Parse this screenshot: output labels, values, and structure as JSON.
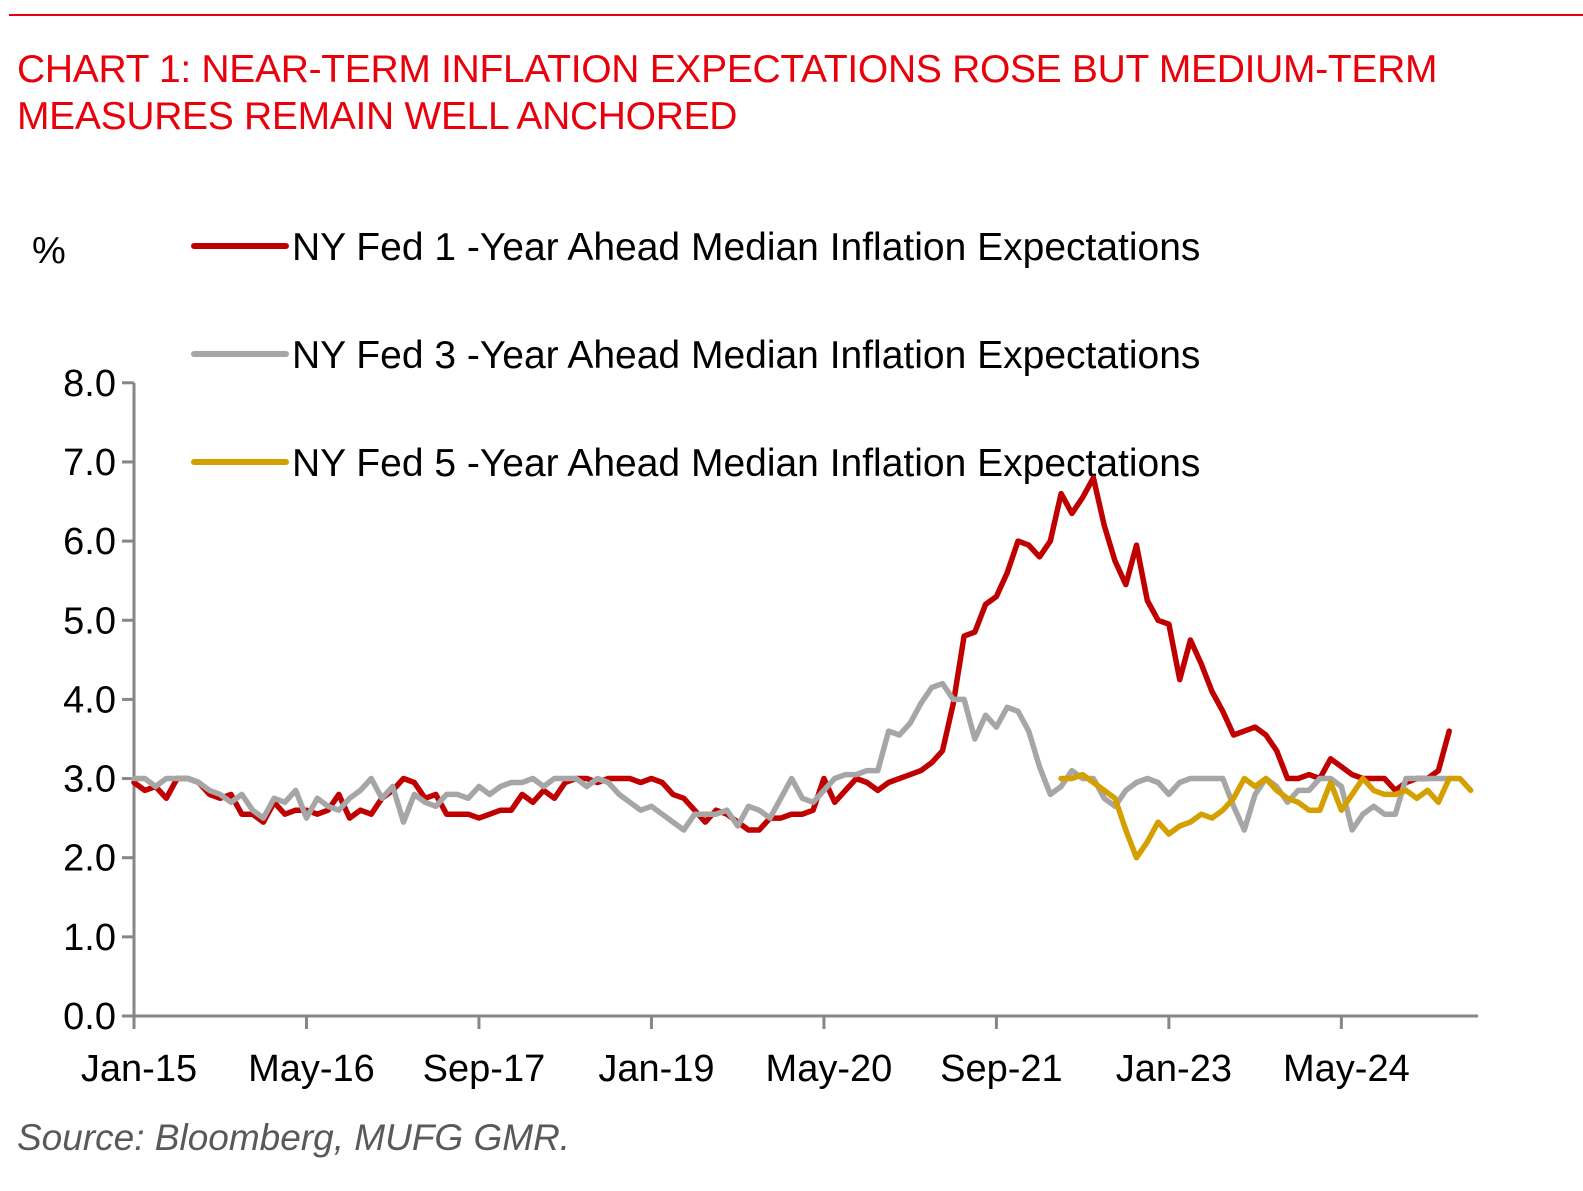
{
  "header": {
    "title_line1": "CHART 1: NEAR-TERM INFLATION EXPECTATIONS ROSE BUT MEDIUM-TERM",
    "title_line2": "MEASURES REMAIN WELL ANCHORED"
  },
  "footer": {
    "source": "Source: Bloomberg, MUFG GMR."
  },
  "colors": {
    "title": "#e8000b",
    "one_year": "#c00000",
    "three_year": "#a6a6a6",
    "five_year": "#d4a000",
    "axis": "#868686"
  },
  "chart_data": {
    "type": "line",
    "title": "CHART 1: NEAR-TERM INFLATION EXPECTATIONS ROSE BUT MEDIUM-TERM MEASURES REMAIN WELL ANCHORED",
    "ylabel": "%",
    "xlabel": "",
    "ylim": [
      0,
      8
    ],
    "yticks": [
      "0.0",
      "1.0",
      "2.0",
      "3.0",
      "4.0",
      "5.0",
      "6.0",
      "7.0",
      "8.0"
    ],
    "x_start": "Jan-15",
    "x_frequency": "monthly",
    "x_end": "Mar-25",
    "xticks": [
      "Jan-15",
      "May-16",
      "Sep-17",
      "Jan-19",
      "May-20",
      "Sep-21",
      "Jan-23",
      "May-24"
    ],
    "xtick_month_index": [
      0,
      16,
      32,
      48,
      64,
      80,
      96,
      112
    ],
    "legend_position": "top-left",
    "grid": false,
    "series": [
      {
        "name": "NY Fed 1 -Year Ahead Median Inflation Expectations",
        "color": "#c00000",
        "start_index": 0,
        "values": [
          2.95,
          2.85,
          2.9,
          2.75,
          3.0,
          3.0,
          2.95,
          2.8,
          2.75,
          2.8,
          2.55,
          2.55,
          2.45,
          2.7,
          2.55,
          2.6,
          2.6,
          2.55,
          2.6,
          2.8,
          2.5,
          2.6,
          2.55,
          2.75,
          2.85,
          3.0,
          2.95,
          2.75,
          2.8,
          2.55,
          2.55,
          2.55,
          2.5,
          2.55,
          2.6,
          2.6,
          2.8,
          2.7,
          2.85,
          2.75,
          2.95,
          3.0,
          3.0,
          2.95,
          3.0,
          3.0,
          3.0,
          2.95,
          3.0,
          2.95,
          2.8,
          2.75,
          2.6,
          2.45,
          2.6,
          2.55,
          2.45,
          2.35,
          2.35,
          2.5,
          2.5,
          2.55,
          2.55,
          2.6,
          3.0,
          2.7,
          2.85,
          3.0,
          2.95,
          2.85,
          2.95,
          3.0,
          3.05,
          3.1,
          3.2,
          3.35,
          3.95,
          4.8,
          4.85,
          5.2,
          5.3,
          5.6,
          6.0,
          5.95,
          5.8,
          6.0,
          6.6,
          6.35,
          6.55,
          6.8,
          6.2,
          5.75,
          5.45,
          5.95,
          5.25,
          5.0,
          4.95,
          4.25,
          4.75,
          4.45,
          4.1,
          3.85,
          3.55,
          3.6,
          3.65,
          3.55,
          3.35,
          3.0,
          3.0,
          3.05,
          3.0,
          3.25,
          3.15,
          3.05,
          3.0,
          3.0,
          3.0,
          2.85,
          2.95,
          3.0,
          3.0,
          3.1,
          3.6
        ]
      },
      {
        "name": "NY Fed 3 -Year Ahead Median Inflation Expectations",
        "color": "#a6a6a6",
        "start_index": 0,
        "values": [
          3.0,
          3.0,
          2.9,
          3.0,
          3.0,
          3.0,
          2.95,
          2.85,
          2.8,
          2.7,
          2.8,
          2.6,
          2.5,
          2.75,
          2.7,
          2.85,
          2.5,
          2.75,
          2.65,
          2.6,
          2.75,
          2.85,
          3.0,
          2.75,
          2.9,
          2.45,
          2.8,
          2.7,
          2.65,
          2.8,
          2.8,
          2.75,
          2.9,
          2.8,
          2.9,
          2.95,
          2.95,
          3.0,
          2.9,
          3.0,
          3.0,
          3.0,
          2.9,
          3.0,
          2.95,
          2.8,
          2.7,
          2.6,
          2.65,
          2.55,
          2.45,
          2.35,
          2.55,
          2.55,
          2.55,
          2.6,
          2.4,
          2.65,
          2.6,
          2.5,
          2.75,
          3.0,
          2.75,
          2.7,
          2.85,
          3.0,
          3.05,
          3.05,
          3.1,
          3.1,
          3.6,
          3.55,
          3.7,
          3.95,
          4.15,
          4.2,
          4.0,
          4.0,
          3.5,
          3.8,
          3.65,
          3.9,
          3.85,
          3.6,
          3.15,
          2.8,
          2.9,
          3.1,
          3.0,
          3.0,
          2.75,
          2.65,
          2.85,
          2.95,
          3.0,
          2.95,
          2.8,
          2.95,
          3.0,
          3.0,
          3.0,
          3.0,
          2.65,
          2.35,
          2.8,
          3.0,
          2.9,
          2.7,
          2.85,
          2.85,
          3.0,
          3.0,
          2.9,
          2.35,
          2.55,
          2.65,
          2.55,
          2.55,
          3.0,
          3.0,
          3.0,
          3.0,
          3.0
        ]
      },
      {
        "name": "NY Fed 5 -Year Ahead Median Inflation Expectations",
        "color": "#d4a000",
        "start_index": 86,
        "values": [
          3.0,
          3.0,
          3.05,
          2.95,
          2.85,
          2.75,
          2.35,
          2.0,
          2.2,
          2.45,
          2.3,
          2.4,
          2.45,
          2.55,
          2.5,
          2.6,
          2.75,
          3.0,
          2.9,
          3.0,
          2.85,
          2.75,
          2.7,
          2.6,
          2.6,
          2.95,
          2.6,
          2.8,
          3.0,
          2.85,
          2.8,
          2.8,
          2.85,
          2.75,
          2.85,
          2.7,
          3.0,
          3.0,
          2.85
        ]
      }
    ]
  }
}
